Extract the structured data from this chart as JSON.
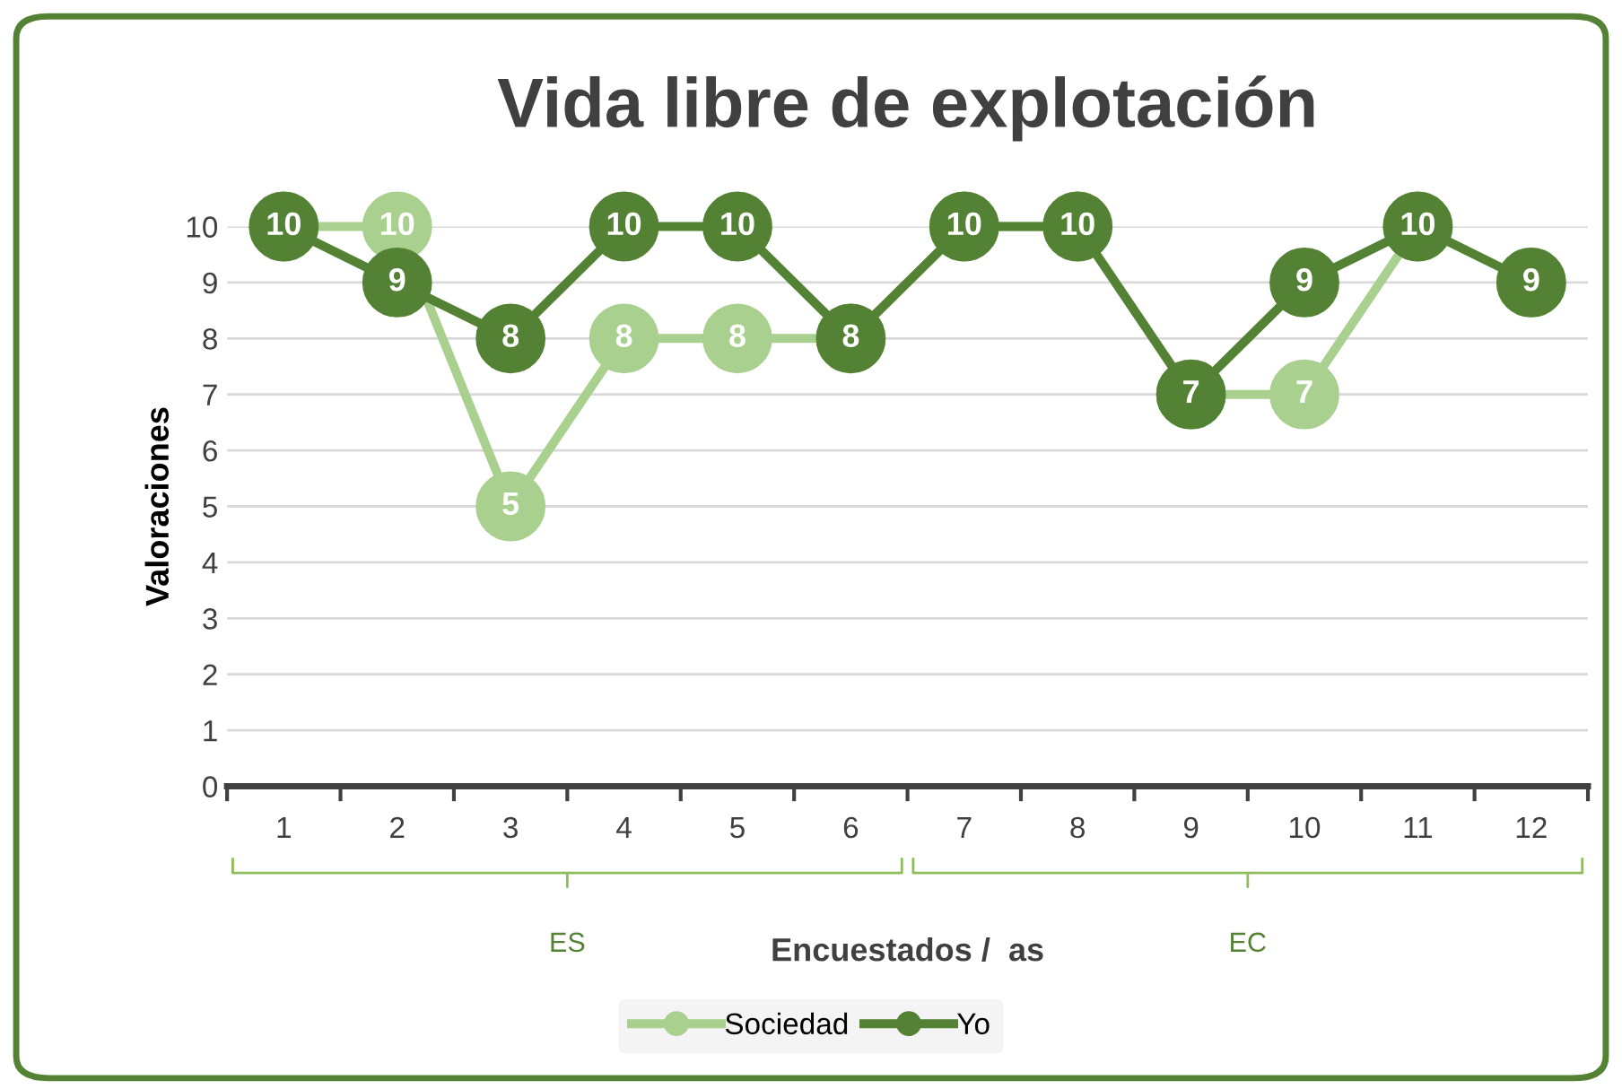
{
  "chart_data": {
    "type": "line",
    "title": "Vida libre de explotación",
    "xlabel": "Encuestados /  as",
    "ylabel": "Valoraciones",
    "categories": [
      "1",
      "2",
      "3",
      "4",
      "5",
      "6",
      "7",
      "8",
      "9",
      "10",
      "11",
      "12"
    ],
    "series": [
      {
        "name": "Sociedad",
        "color": "#a9d08e",
        "values": [
          10,
          10,
          5,
          8,
          8,
          8,
          10,
          10,
          7,
          7,
          10,
          9
        ],
        "value_labels": [
          null,
          "10",
          "5",
          "8",
          "8",
          null,
          null,
          null,
          null,
          "7",
          null,
          null
        ]
      },
      {
        "name": "Yo",
        "color": "#548235",
        "values": [
          10,
          9,
          8,
          10,
          10,
          8,
          10,
          10,
          7,
          9,
          10,
          9
        ],
        "value_labels": [
          "10",
          "9",
          "8",
          "10",
          "10",
          "8",
          "10",
          "10",
          "7",
          "9",
          "10",
          "9"
        ]
      }
    ],
    "ylim": [
      0,
      10
    ],
    "yticks": [
      0,
      1,
      2,
      3,
      4,
      5,
      6,
      7,
      8,
      9,
      10
    ],
    "grid": "y",
    "legend": "bottom",
    "marker": "circle",
    "line_style": "solid",
    "annotations": [
      "ES",
      "EC"
    ]
  }
}
